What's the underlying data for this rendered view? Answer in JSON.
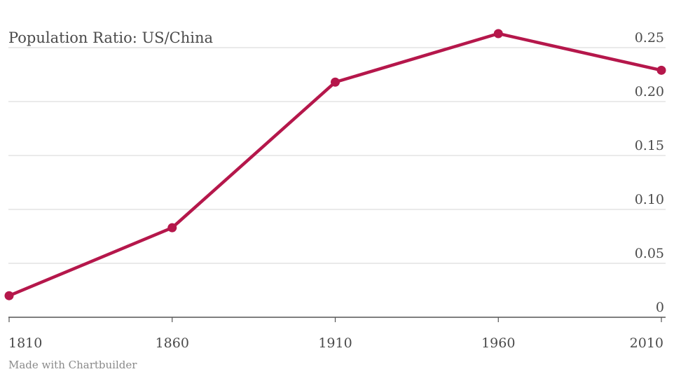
{
  "chart_data": {
    "type": "line",
    "title": "Population Ratio: US/China",
    "xlabel": "",
    "ylabel": "",
    "x": [
      1810,
      1860,
      1910,
      1960,
      2010
    ],
    "x_tick_labels": [
      "1810",
      "1860",
      "1910",
      "1960",
      "2010"
    ],
    "y_ticks": [
      0,
      0.05,
      0.1,
      0.15,
      0.2,
      0.25
    ],
    "y_tick_labels": [
      "0",
      "0.05",
      "0.10",
      "0.15",
      "0.20",
      "0.25"
    ],
    "ylim": [
      0,
      0.25
    ],
    "y_axis_side": "right",
    "grid": true,
    "series": [
      {
        "values": [
          0.02,
          0.083,
          0.218,
          0.263,
          0.229
        ],
        "color": "#b5174b"
      }
    ],
    "credit": "Made with Chartbuilder"
  }
}
